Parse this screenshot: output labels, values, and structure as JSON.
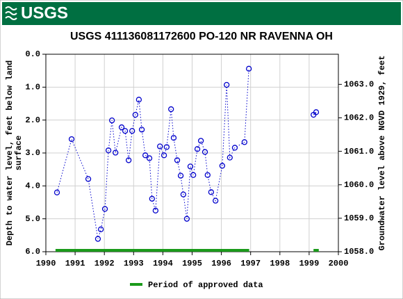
{
  "header": {
    "logo": "USGS"
  },
  "chart_data": {
    "type": "line",
    "title": "USGS 411136081172600 PO-120 NR RAVENNA OH",
    "ylabel": [
      "Depth to water level, feet below land",
      "surface"
    ],
    "y2label": "Groundwater level above NGVD 1929, feet",
    "x": [
      1990.38,
      1990.88,
      1991.45,
      1991.78,
      1991.88,
      1992.02,
      1992.14,
      1992.26,
      1992.38,
      1992.59,
      1992.71,
      1992.83,
      1992.95,
      1993.06,
      1993.18,
      1993.28,
      1993.4,
      1993.54,
      1993.63,
      1993.75,
      1993.9,
      1994.04,
      1994.13,
      1994.28,
      1994.37,
      1994.49,
      1994.61,
      1994.7,
      1994.82,
      1994.94,
      1995.04,
      1995.18,
      1995.3,
      1995.44,
      1995.53,
      1995.65,
      1995.8,
      1996.03,
      1996.18,
      1996.29,
      1996.46,
      1996.79,
      1996.94,
      1998.0,
      1999.15,
      1999.24
    ],
    "series": [
      {
        "name": "Depth to water level",
        "color": "#0000cc",
        "values": [
          4.2,
          2.58,
          3.79,
          5.61,
          5.32,
          4.7,
          2.92,
          2.01,
          2.99,
          2.22,
          2.33,
          3.22,
          2.33,
          1.84,
          1.38,
          2.29,
          3.07,
          3.16,
          4.39,
          4.75,
          2.8,
          3.07,
          2.82,
          1.67,
          2.54,
          3.22,
          3.69,
          4.26,
          5.0,
          3.41,
          3.67,
          2.88,
          2.63,
          2.97,
          3.67,
          4.19,
          4.45,
          3.39,
          0.93,
          3.14,
          2.84,
          2.67,
          0.44,
          null,
          1.84,
          1.76
        ]
      }
    ],
    "approved_periods": {
      "name": "Period of approved data",
      "color": "#1a9a1a",
      "ranges": [
        [
          1990.33,
          1996.95
        ],
        [
          1999.15,
          1999.33
        ]
      ]
    },
    "xlim": [
      1990,
      2000
    ],
    "xticks": [
      1990,
      1991,
      1992,
      1993,
      1994,
      1995,
      1996,
      1997,
      1998,
      1999,
      2000
    ],
    "ylim": [
      6,
      0
    ],
    "yticks": [
      {
        "value": 0,
        "label": "0.0"
      },
      {
        "value": 1,
        "label": "1.0"
      },
      {
        "value": 2,
        "label": "2.0"
      },
      {
        "value": 3,
        "label": "3.0"
      },
      {
        "value": 4,
        "label": "4.0"
      },
      {
        "value": 5,
        "label": "5.0"
      },
      {
        "value": 6,
        "label": "6.0"
      }
    ],
    "y2lim": [
      1058,
      1063.9
    ],
    "y2ticks": [
      {
        "value": 1058,
        "label": "1058.0"
      },
      {
        "value": 1059,
        "label": "1059.0"
      },
      {
        "value": 1060,
        "label": "1060.0"
      },
      {
        "value": 1061,
        "label": "1061.0"
      },
      {
        "value": 1062,
        "label": "1062.0"
      },
      {
        "value": 1063,
        "label": "1063.0"
      }
    ],
    "grid": true
  }
}
